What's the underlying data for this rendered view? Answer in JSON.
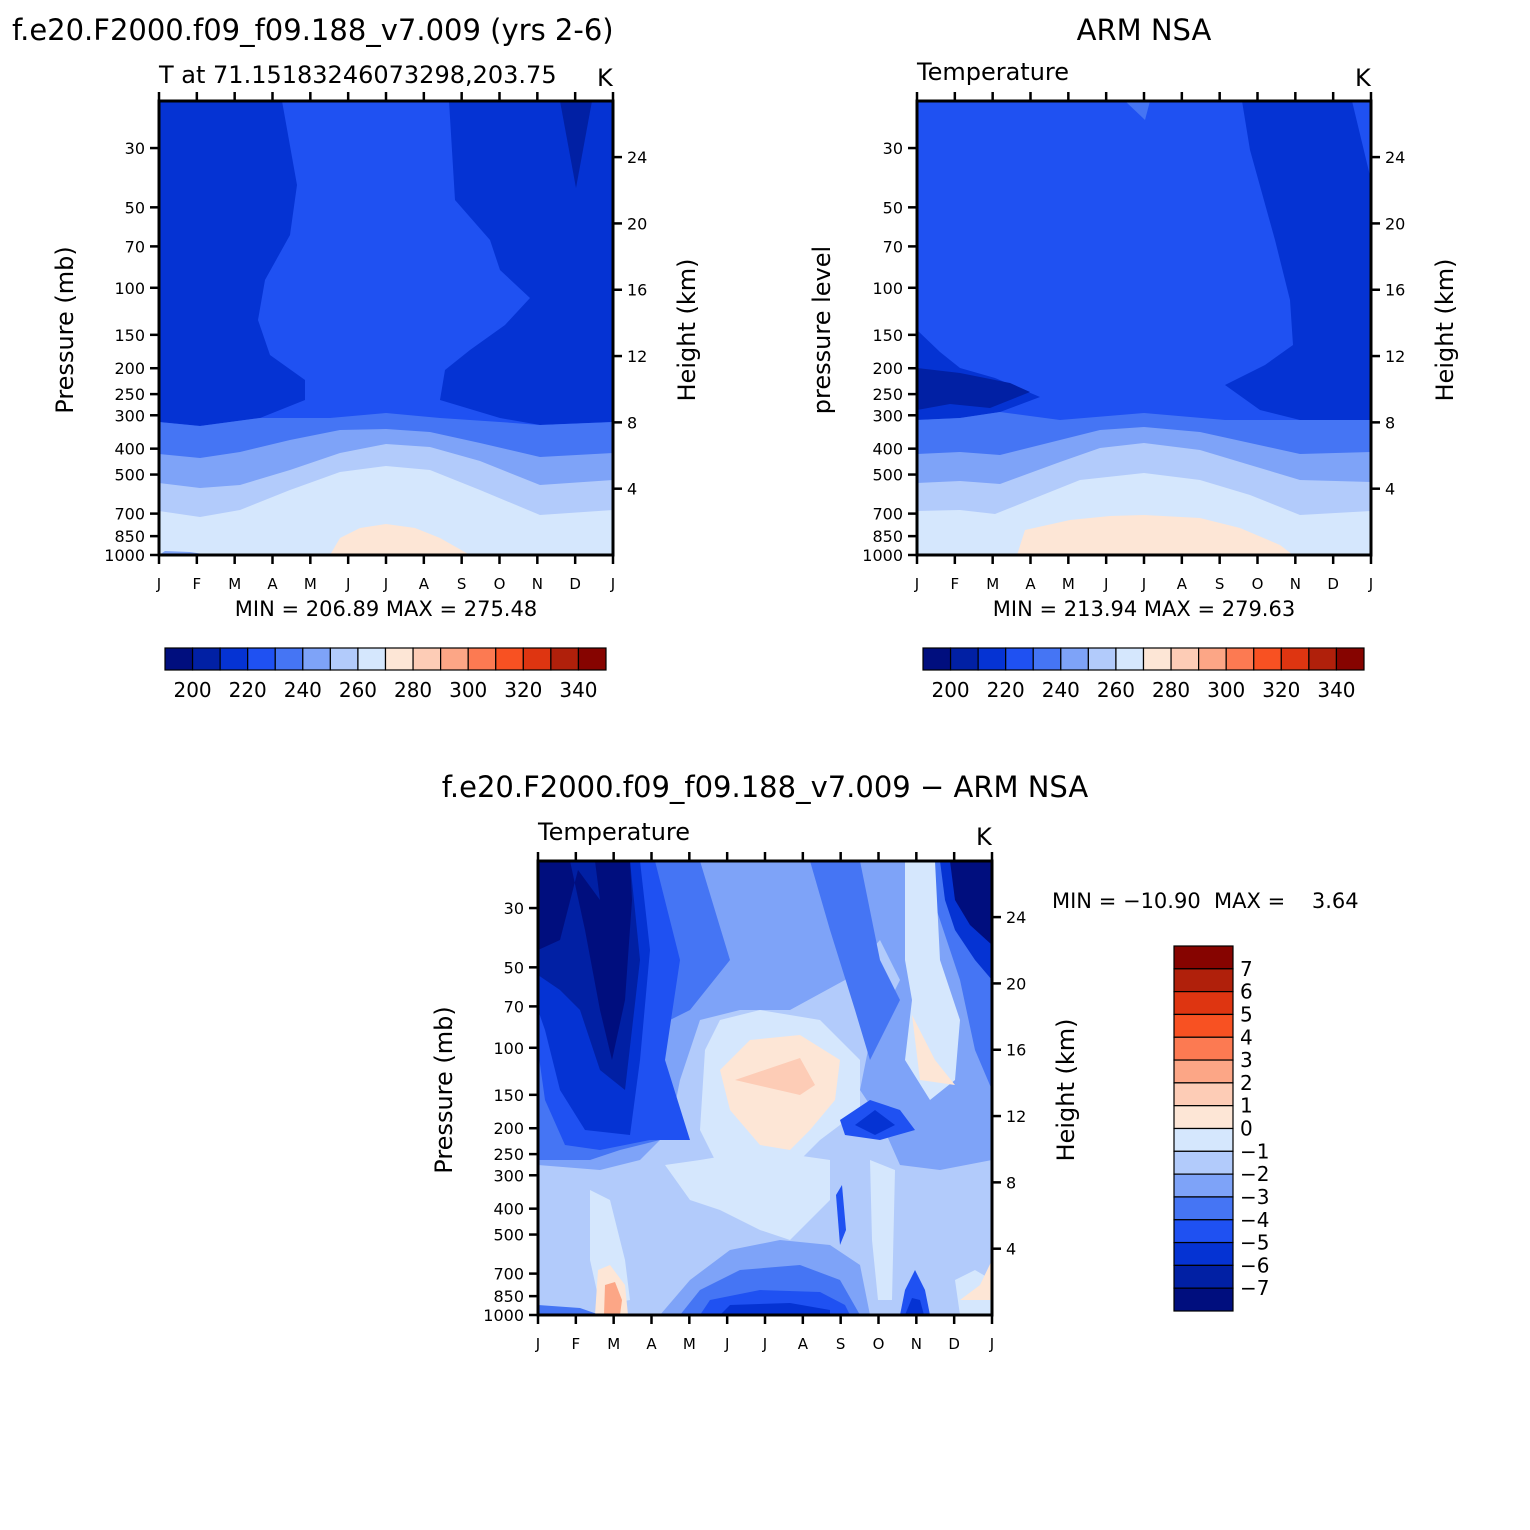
{
  "colors": {
    "temp_levels": [
      "#000e7e",
      "#0120a4",
      "#0533d3",
      "#1f51f2",
      "#4575f4",
      "#7ea3f8",
      "#b2cbfb",
      "#d5e7fd",
      "#fde6d6",
      "#fdccb6",
      "#fca686",
      "#fc7a52",
      "#f85122",
      "#de3511",
      "#b0200b",
      "#860400"
    ],
    "diff_levels": [
      "#000e7e",
      "#0120a4",
      "#0533d3",
      "#1f51f2",
      "#4575f4",
      "#7ea3f8",
      "#b2cbfb",
      "#d5e7fd",
      "#fde6d6",
      "#fdccb6",
      "#fca686",
      "#fc7a52",
      "#f85122",
      "#de3511",
      "#b0200b",
      "#860400"
    ]
  },
  "chart_data": [
    {
      "type": "heatmap",
      "title": "f.e20.F2000.f09_f09.188_v7.009 (yrs 2-6)",
      "subtitle_left": "T at 71.15183246073298,203.75",
      "subtitle_right": "K",
      "ylabel": "Pressure (mb)",
      "ylabel_right": "Height (km)",
      "x_ticks": [
        "J",
        "F",
        "M",
        "A",
        "M",
        "J",
        "J",
        "A",
        "S",
        "O",
        "N",
        "D",
        "J"
      ],
      "y_ticks": [
        "30",
        "50",
        "70",
        "100",
        "150",
        "200",
        "250",
        "300",
        "400",
        "500",
        "700",
        "850",
        "1000"
      ],
      "y_ticks_right": [
        "24",
        "20",
        "16",
        "12",
        "8",
        "4"
      ],
      "stats": "MIN = 206.89  MAX = 275.48",
      "colorbar_labels": [
        "200",
        "220",
        "240",
        "260",
        "280",
        "300",
        "320",
        "340"
      ]
    },
    {
      "type": "heatmap",
      "title": "ARM NSA",
      "subtitle_left": "Temperature",
      "subtitle_right": "K",
      "ylabel": "pressure level",
      "ylabel_right": "Height (km)",
      "x_ticks": [
        "J",
        "F",
        "M",
        "A",
        "M",
        "J",
        "J",
        "A",
        "S",
        "O",
        "N",
        "D",
        "J"
      ],
      "y_ticks": [
        "30",
        "50",
        "70",
        "100",
        "150",
        "200",
        "250",
        "300",
        "400",
        "500",
        "700",
        "850",
        "1000"
      ],
      "y_ticks_right": [
        "24",
        "20",
        "16",
        "12",
        "8",
        "4"
      ],
      "stats": "MIN = 213.94  MAX = 279.63",
      "colorbar_labels": [
        "200",
        "220",
        "240",
        "260",
        "280",
        "300",
        "320",
        "340"
      ]
    },
    {
      "type": "heatmap",
      "title": "f.e20.F2000.f09_f09.188_v7.009 − ARM NSA",
      "subtitle_left": "Temperature",
      "subtitle_right": "K",
      "ylabel": "Pressure (mb)",
      "ylabel_right": "Height (km)",
      "x_ticks": [
        "J",
        "F",
        "M",
        "A",
        "M",
        "J",
        "J",
        "A",
        "S",
        "O",
        "N",
        "D",
        "J"
      ],
      "y_ticks": [
        "30",
        "50",
        "70",
        "100",
        "150",
        "200",
        "250",
        "300",
        "400",
        "500",
        "700",
        "850",
        "1000"
      ],
      "y_ticks_right": [
        "24",
        "20",
        "16",
        "12",
        "8",
        "4"
      ],
      "stats": "MIN = −10.90  MAX =    3.64",
      "colorbar_labels": [
        "7",
        "6",
        "5",
        "4",
        "3",
        "2",
        "1",
        "0",
        "−1",
        "−2",
        "−3",
        "−4",
        "−5",
        "−6",
        "−7"
      ]
    }
  ]
}
